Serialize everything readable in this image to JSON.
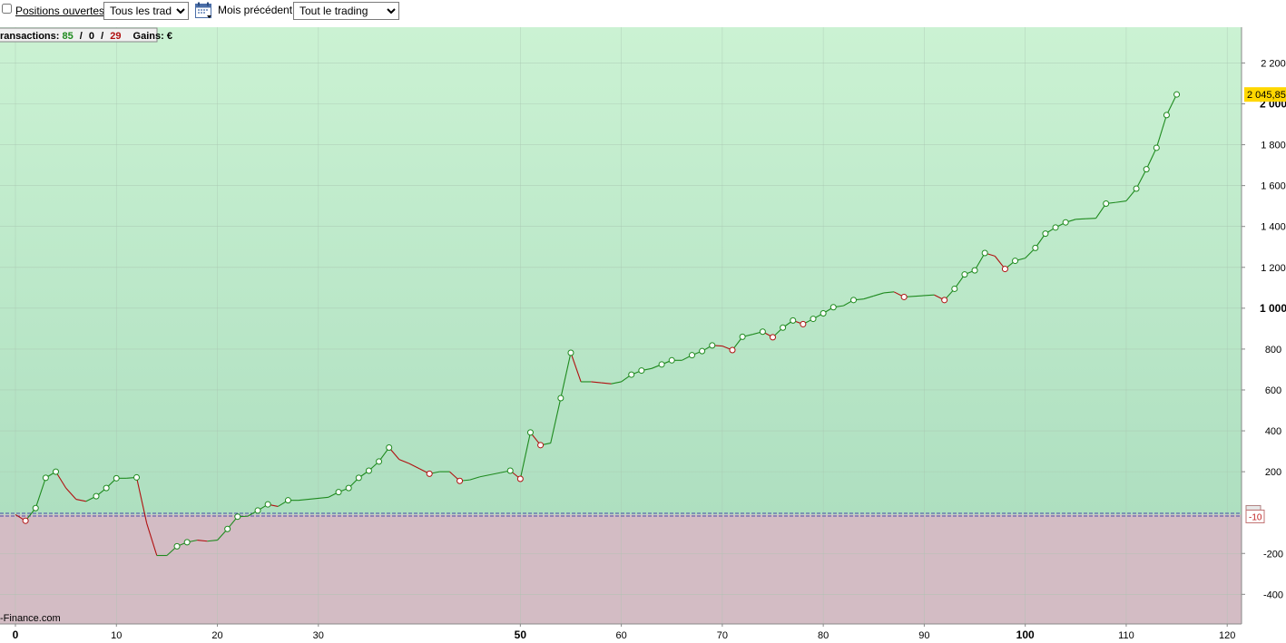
{
  "toolbar": {
    "positions_label": "Positions ouvertes",
    "trades_select": "Tous les trades",
    "month_label": "Mois précédent",
    "trading_select": "Tout le trading"
  },
  "info_box": {
    "prefix": "ransactions:",
    "wins": "85",
    "sep1": "/",
    "neutral": "0",
    "sep2": "/",
    "losses": "29",
    "gains_label": "Gains:",
    "gains_unit": "€"
  },
  "watermark": "-Finance.com",
  "colors": {
    "positive_bg_top": "#cbf2d3",
    "positive_bg_bottom": "#aedfc0",
    "negative_bg": "#d3bcc4",
    "up_line": "#1e8a1e",
    "down_line": "#b01010",
    "zero_line": "#4a4aa8",
    "last_value_bg": "#ffd700"
  },
  "chart_data": {
    "type": "line",
    "xlim": [
      0,
      121
    ],
    "ylim": [
      -545,
      2375
    ],
    "x_ticks": [
      0,
      10,
      20,
      30,
      50,
      60,
      70,
      80,
      90,
      100,
      110,
      120
    ],
    "x_tick_labels": [
      "0",
      "10",
      "20",
      "30",
      "50",
      "60",
      "70",
      "80",
      "90",
      "100",
      "110",
      "120"
    ],
    "y_ticks": [
      2200,
      2000,
      1800,
      1600,
      1400,
      1200,
      1000,
      800,
      600,
      400,
      200,
      -200,
      -400
    ],
    "y_tick_labels": [
      "2 200",
      "2 000",
      "1 800",
      "1 600",
      "1 400",
      "1 200",
      "1 000",
      "800",
      "600",
      "400",
      "200",
      "-200",
      "-400"
    ],
    "bold_ticks": [
      "2 000",
      "1 000",
      "0",
      "50",
      "100"
    ],
    "baseline_value": -10,
    "baseline_label": "-10",
    "last_value": 2045.85,
    "last_value_label": "2 045,85",
    "points": [
      [
        0,
        -10
      ],
      [
        1,
        -40
      ],
      [
        2,
        22
      ],
      [
        3,
        170
      ],
      [
        4,
        200
      ],
      [
        5,
        120
      ],
      [
        6,
        65
      ],
      [
        7,
        55
      ],
      [
        8,
        80
      ],
      [
        9,
        120
      ],
      [
        10,
        168
      ],
      [
        11,
        168
      ],
      [
        12,
        172
      ],
      [
        13,
        -52
      ],
      [
        14,
        -210
      ],
      [
        15,
        -210
      ],
      [
        16,
        -165
      ],
      [
        17,
        -145
      ],
      [
        18,
        -135
      ],
      [
        19,
        -140
      ],
      [
        20,
        -135
      ],
      [
        21,
        -80
      ],
      [
        22,
        -20
      ],
      [
        23,
        -18
      ],
      [
        24,
        10
      ],
      [
        25,
        40
      ],
      [
        26,
        30
      ],
      [
        27,
        60
      ],
      [
        28,
        60
      ],
      [
        31,
        75
      ],
      [
        32,
        100
      ],
      [
        33,
        120
      ],
      [
        34,
        170
      ],
      [
        35,
        205
      ],
      [
        36,
        250
      ],
      [
        37,
        318
      ],
      [
        38,
        260
      ],
      [
        39,
        240
      ],
      [
        40,
        215
      ],
      [
        41,
        190
      ],
      [
        42,
        200
      ],
      [
        43,
        200
      ],
      [
        44,
        155
      ],
      [
        45,
        160
      ],
      [
        46,
        175
      ],
      [
        47,
        185
      ],
      [
        48,
        195
      ],
      [
        49,
        205
      ],
      [
        50,
        165
      ],
      [
        51,
        392
      ],
      [
        52,
        330
      ],
      [
        53,
        340
      ],
      [
        54,
        560
      ],
      [
        55,
        782
      ],
      [
        56,
        640
      ],
      [
        57,
        640
      ],
      [
        58,
        635
      ],
      [
        59,
        630
      ],
      [
        60,
        640
      ],
      [
        61,
        675
      ],
      [
        62,
        695
      ],
      [
        63,
        705
      ],
      [
        64,
        725
      ],
      [
        65,
        745
      ],
      [
        66,
        745
      ],
      [
        67,
        770
      ],
      [
        68,
        790
      ],
      [
        69,
        818
      ],
      [
        70,
        815
      ],
      [
        71,
        795
      ],
      [
        72,
        860
      ],
      [
        73,
        872
      ],
      [
        74,
        885
      ],
      [
        75,
        858
      ],
      [
        76,
        905
      ],
      [
        77,
        940
      ],
      [
        78,
        922
      ],
      [
        79,
        948
      ],
      [
        80,
        975
      ],
      [
        81,
        1005
      ],
      [
        82,
        1012
      ],
      [
        83,
        1040
      ],
      [
        84,
        1045
      ],
      [
        85,
        1060
      ],
      [
        86,
        1075
      ],
      [
        87,
        1080
      ],
      [
        88,
        1055
      ],
      [
        91,
        1065
      ],
      [
        92,
        1040
      ],
      [
        93,
        1095
      ],
      [
        94,
        1165
      ],
      [
        95,
        1185
      ],
      [
        96,
        1270
      ],
      [
        97,
        1255
      ],
      [
        98,
        1192
      ],
      [
        99,
        1232
      ],
      [
        100,
        1245
      ],
      [
        101,
        1295
      ],
      [
        102,
        1365
      ],
      [
        103,
        1395
      ],
      [
        104,
        1420
      ],
      [
        105,
        1435
      ],
      [
        106,
        1438
      ],
      [
        107,
        1440
      ],
      [
        108,
        1512
      ],
      [
        109,
        1518
      ],
      [
        110,
        1525
      ],
      [
        111,
        1585
      ],
      [
        112,
        1680
      ],
      [
        113,
        1785
      ],
      [
        114,
        1945
      ],
      [
        115,
        2045.85
      ]
    ]
  }
}
